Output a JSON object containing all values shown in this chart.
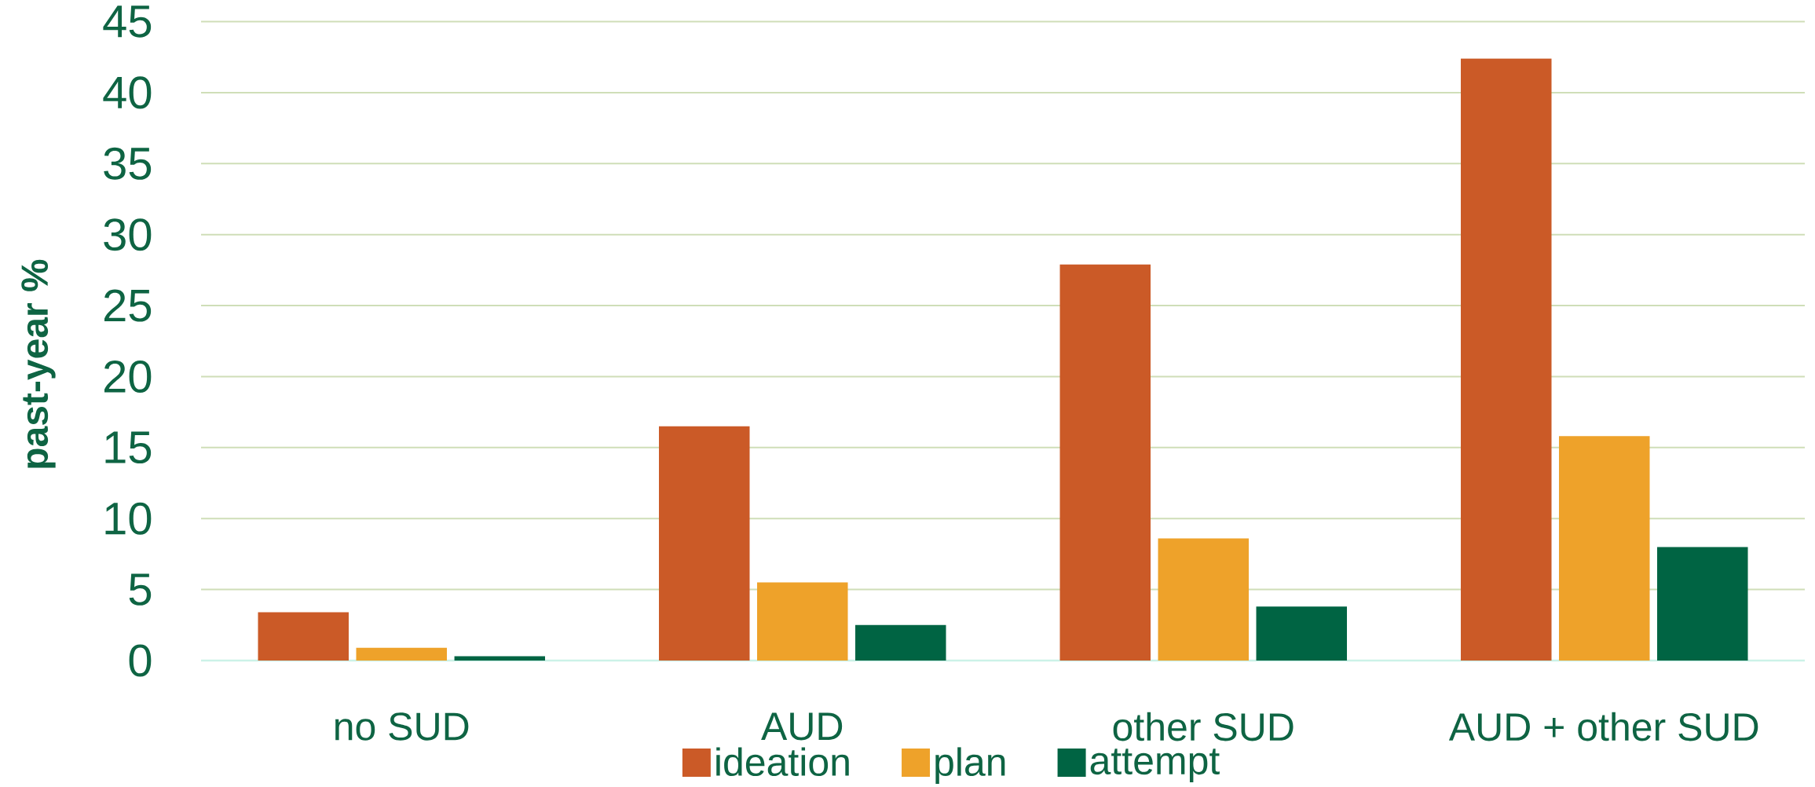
{
  "chart_data": {
    "type": "bar",
    "ylabel": "past-year %",
    "categories": [
      "no SUD",
      "AUD",
      "other SUD",
      "AUD + other SUD"
    ],
    "series": [
      {
        "name": "ideation",
        "color": "#cb5a27",
        "values": [
          3.4,
          16.5,
          27.9,
          42.4
        ]
      },
      {
        "name": "plan",
        "color": "#eea22a",
        "values": [
          0.9,
          5.5,
          8.6,
          15.8
        ]
      },
      {
        "name": "attempt",
        "color": "#006443",
        "values": [
          0.3,
          2.5,
          3.8,
          8.0
        ]
      }
    ],
    "ylim": [
      0,
      45
    ],
    "yticks": [
      0,
      5,
      10,
      15,
      20,
      25,
      30,
      35,
      40,
      45
    ],
    "grid": "y",
    "legend": "bottom"
  }
}
